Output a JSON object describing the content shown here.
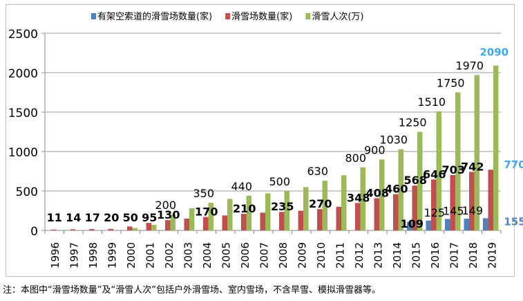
{
  "chart_data": {
    "type": "bar",
    "title": "",
    "xlabel": "",
    "ylabel": "",
    "ylim": [
      0,
      2500
    ],
    "yticks": [
      0,
      500,
      1000,
      1500,
      2000,
      2500
    ],
    "grid": true,
    "legend_position": "top",
    "categories": [
      "1996",
      "1997",
      "1998",
      "1999",
      "2000",
      "2001",
      "2002",
      "2003",
      "2004",
      "2005",
      "2006",
      "2007",
      "2008",
      "2009",
      "2010",
      "2011",
      "2012",
      "2013",
      "2014",
      "2015",
      "2016",
      "2017",
      "2018",
      "2019"
    ],
    "series": [
      {
        "name": "有架空索道的滑雪场数量(家)",
        "color": "#4f81bd",
        "values": [
          null,
          null,
          null,
          null,
          null,
          null,
          null,
          null,
          null,
          null,
          null,
          null,
          null,
          null,
          null,
          null,
          null,
          null,
          null,
          109,
          125,
          145,
          149,
          155
        ],
        "labels": [
          null,
          null,
          null,
          null,
          null,
          null,
          null,
          null,
          null,
          null,
          null,
          null,
          null,
          null,
          null,
          null,
          null,
          null,
          null,
          "109",
          "125",
          "145",
          "149",
          "155"
        ]
      },
      {
        "name": "滑雪场数量(家)",
        "color": "#c0504d",
        "values": [
          11,
          14,
          17,
          20,
          50,
          95,
          130,
          150,
          170,
          190,
          210,
          225,
          235,
          250,
          270,
          300,
          348,
          408,
          460,
          568,
          646,
          703,
          742,
          770
        ],
        "labels": [
          "11",
          "14",
          "17",
          "20",
          "50",
          "95",
          "130",
          null,
          "170",
          null,
          "210",
          null,
          "235",
          null,
          "270",
          null,
          "348",
          "408",
          "460",
          "568",
          "646",
          "703",
          "742",
          "770"
        ]
      },
      {
        "name": "滑雪人次(万)",
        "color": "#9bbb59",
        "values": [
          0,
          0,
          0,
          0,
          30,
          70,
          200,
          280,
          350,
          400,
          440,
          470,
          500,
          550,
          630,
          700,
          800,
          900,
          1030,
          1250,
          1510,
          1750,
          1970,
          2090
        ],
        "labels": [
          null,
          null,
          null,
          null,
          null,
          null,
          "200",
          null,
          "350",
          null,
          "440",
          null,
          "500",
          null,
          "630",
          null,
          "800",
          "900",
          "1030",
          "1250",
          "1510",
          "1750",
          "1970",
          "2090"
        ]
      }
    ],
    "highlight_color": "#3fa9e8"
  },
  "note": "注：本图中“滑雪场数量”及“滑雪人次”包括户外滑雪场、室内雪场，不含旱雪、模拟滑雪器等。"
}
